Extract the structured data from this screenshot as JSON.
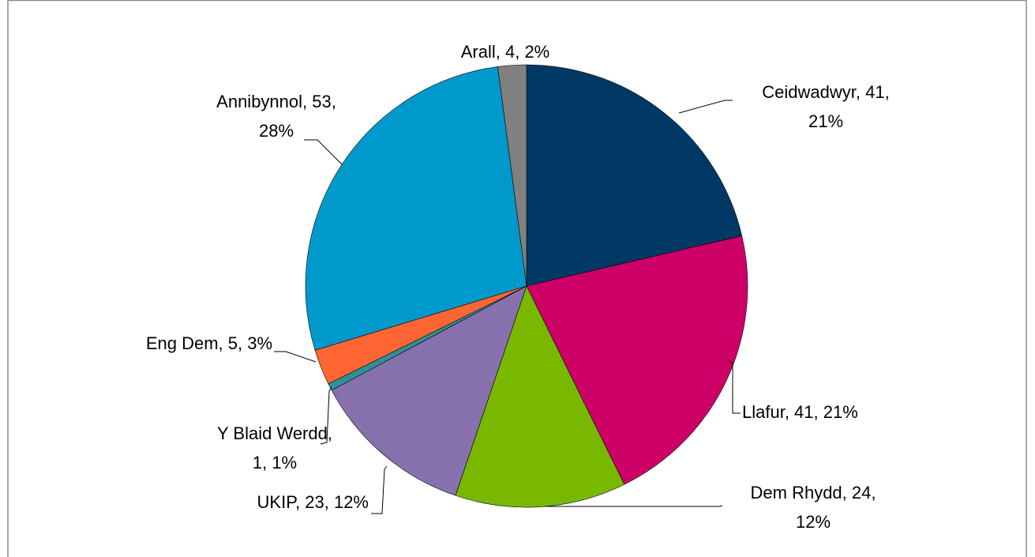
{
  "chart_data": {
    "type": "pie",
    "values": [
      41,
      41,
      24,
      23,
      1,
      5,
      53,
      4
    ],
    "value_labels": [
      [
        "Ceidwadwyr, 41,",
        "21%"
      ],
      [
        "Llafur, 41, 21%"
      ],
      [
        "Dem Rhydd, 24,",
        "12%"
      ],
      [
        "UKIP, 23, 12%"
      ],
      [
        "Y Blaid Werdd,",
        "1, 1%"
      ],
      [
        "Eng Dem, 5, 3%"
      ],
      [
        "Annibynnol, 53,",
        "28%"
      ],
      [
        "Arall, 4, 2%"
      ]
    ],
    "colors": [
      "#003865",
      "#cc0066",
      "#7ab800",
      "#8771ad",
      "#2e9199",
      "#ff6633",
      "#0099cc",
      "#808080"
    ]
  }
}
